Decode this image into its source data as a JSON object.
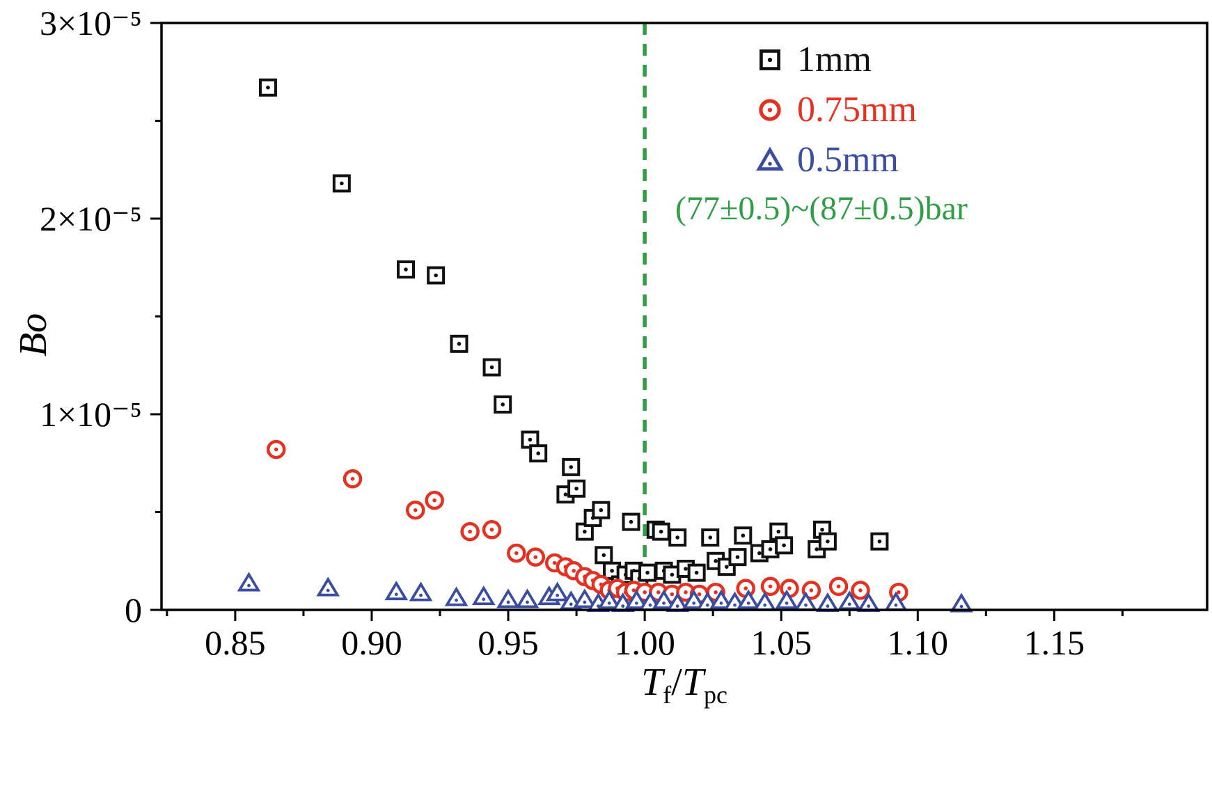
{
  "chart_data": {
    "type": "scatter",
    "title": "",
    "ylabel": "Bo",
    "xlabel": {
      "t1": "T",
      "sub1": "f",
      "sep": "/",
      "t2": "T",
      "sub2": "pc"
    },
    "xlim": [
      0.823,
      1.206
    ],
    "ylim": [
      0,
      3e-05
    ],
    "grid": false,
    "legend_position": "top-right-inside",
    "x_ticks": {
      "values": [
        0.85,
        0.9,
        0.95,
        1.0,
        1.05,
        1.1,
        1.15
      ],
      "labels": [
        "0.85",
        "0.90",
        "0.95",
        "1.00",
        "1.05",
        "1.10",
        "1.15"
      ],
      "minor": [
        0.825,
        0.875,
        0.925,
        0.975,
        1.025,
        1.075,
        1.125,
        1.175
      ]
    },
    "y_ticks": {
      "values": [
        0,
        1e-05,
        2e-05,
        3e-05
      ],
      "labels": [
        "0",
        "1×10⁻⁵",
        "2×10⁻⁵",
        "3×10⁻⁵"
      ],
      "minor": [
        5e-06,
        1.5e-05,
        2.5e-05
      ]
    },
    "reference_line": {
      "x": 1.0,
      "orientation": "vertical",
      "style": "dashed",
      "color": "#2f9e44"
    },
    "annotation": {
      "text": "(77±0.5)~(87±0.5)bar",
      "color": "#2f9e44"
    },
    "series": [
      {
        "name": "1mm",
        "marker": "square",
        "color": "#111111",
        "points": [
          [
            0.862,
            2.67e-05
          ],
          [
            0.889,
            2.18e-05
          ],
          [
            0.9125,
            1.74e-05
          ],
          [
            0.9235,
            1.71e-05
          ],
          [
            0.932,
            1.36e-05
          ],
          [
            0.944,
            1.24e-05
          ],
          [
            0.948,
            1.05e-05
          ],
          [
            0.958,
            8.7e-06
          ],
          [
            0.961,
            8e-06
          ],
          [
            0.971,
            5.9e-06
          ],
          [
            0.973,
            7.3e-06
          ],
          [
            0.975,
            6.2e-06
          ],
          [
            0.978,
            4e-06
          ],
          [
            0.981,
            4.7e-06
          ],
          [
            0.984,
            5.1e-06
          ],
          [
            0.985,
            2.8e-06
          ],
          [
            0.988,
            2e-06
          ],
          [
            0.991,
            1.3e-06
          ],
          [
            0.993,
            1.8e-06
          ],
          [
            0.995,
            4.5e-06
          ],
          [
            0.996,
            2e-06
          ],
          [
            0.998,
            1.6e-06
          ],
          [
            1.001,
            1.9e-06
          ],
          [
            1.004,
            4.1e-06
          ],
          [
            1.006,
            4e-06
          ],
          [
            1.007,
            2e-06
          ],
          [
            1.01,
            1.8e-06
          ],
          [
            1.012,
            3.7e-06
          ],
          [
            1.015,
            2.1e-06
          ],
          [
            1.019,
            1.9e-06
          ],
          [
            1.024,
            3.7e-06
          ],
          [
            1.026,
            2.5e-06
          ],
          [
            1.03,
            2.2e-06
          ],
          [
            1.034,
            2.7e-06
          ],
          [
            1.036,
            3.8e-06
          ],
          [
            1.042,
            2.9e-06
          ],
          [
            1.046,
            3.1e-06
          ],
          [
            1.049,
            4e-06
          ],
          [
            1.051,
            3.3e-06
          ],
          [
            1.063,
            3.1e-06
          ],
          [
            1.065,
            4.1e-06
          ],
          [
            1.067,
            3.5e-06
          ],
          [
            1.086,
            3.5e-06
          ]
        ]
      },
      {
        "name": "0.75mm",
        "marker": "circle",
        "color": "#e53122",
        "points": [
          [
            0.865,
            8.2e-06
          ],
          [
            0.893,
            6.7e-06
          ],
          [
            0.916,
            5.1e-06
          ],
          [
            0.923,
            5.6e-06
          ],
          [
            0.936,
            4e-06
          ],
          [
            0.944,
            4.1e-06
          ],
          [
            0.953,
            2.9e-06
          ],
          [
            0.96,
            2.7e-06
          ],
          [
            0.967,
            2.4e-06
          ],
          [
            0.971,
            2.2e-06
          ],
          [
            0.974,
            2e-06
          ],
          [
            0.978,
            1.7e-06
          ],
          [
            0.981,
            1.5e-06
          ],
          [
            0.984,
            1.3e-06
          ],
          [
            0.987,
            1e-06
          ],
          [
            0.99,
            1.1e-06
          ],
          [
            0.993,
            9e-07
          ],
          [
            0.996,
            1e-06
          ],
          [
            1.0,
            9e-07
          ],
          [
            1.005,
            9e-07
          ],
          [
            1.01,
            8e-07
          ],
          [
            1.015,
            9e-07
          ],
          [
            1.02,
            8e-07
          ],
          [
            1.026,
            9e-07
          ],
          [
            1.037,
            1.1e-06
          ],
          [
            1.046,
            1.2e-06
          ],
          [
            1.053,
            1.1e-06
          ],
          [
            1.061,
            1e-06
          ],
          [
            1.071,
            1.2e-06
          ],
          [
            1.079,
            1e-06
          ],
          [
            1.093,
            9e-07
          ]
        ]
      },
      {
        "name": "0.5mm",
        "marker": "triangle",
        "color": "#3b4da0",
        "points": [
          [
            0.855,
            1.35e-06
          ],
          [
            0.884,
            1.1e-06
          ],
          [
            0.909,
            9e-07
          ],
          [
            0.918,
            8.5e-07
          ],
          [
            0.931,
            6e-07
          ],
          [
            0.941,
            6.5e-07
          ],
          [
            0.95,
            5e-07
          ],
          [
            0.957,
            5e-07
          ],
          [
            0.965,
            6.5e-07
          ],
          [
            0.968,
            8.5e-07
          ],
          [
            0.973,
            4e-07
          ],
          [
            0.978,
            5e-07
          ],
          [
            0.983,
            3e-07
          ],
          [
            0.987,
            4.5e-07
          ],
          [
            0.992,
            3e-07
          ],
          [
            0.997,
            4.5e-07
          ],
          [
            1.002,
            3.5e-07
          ],
          [
            1.007,
            4.5e-07
          ],
          [
            1.012,
            3e-07
          ],
          [
            1.018,
            4.5e-07
          ],
          [
            1.023,
            3.5e-07
          ],
          [
            1.028,
            4.5e-07
          ],
          [
            1.033,
            3.5e-07
          ],
          [
            1.038,
            4.5e-07
          ],
          [
            1.044,
            3.5e-07
          ],
          [
            1.052,
            4.5e-07
          ],
          [
            1.059,
            3.5e-07
          ],
          [
            1.067,
            3e-07
          ],
          [
            1.075,
            4e-07
          ],
          [
            1.082,
            3e-07
          ],
          [
            1.092,
            3.5e-07
          ],
          [
            1.116,
            2.8e-07
          ]
        ]
      }
    ]
  }
}
